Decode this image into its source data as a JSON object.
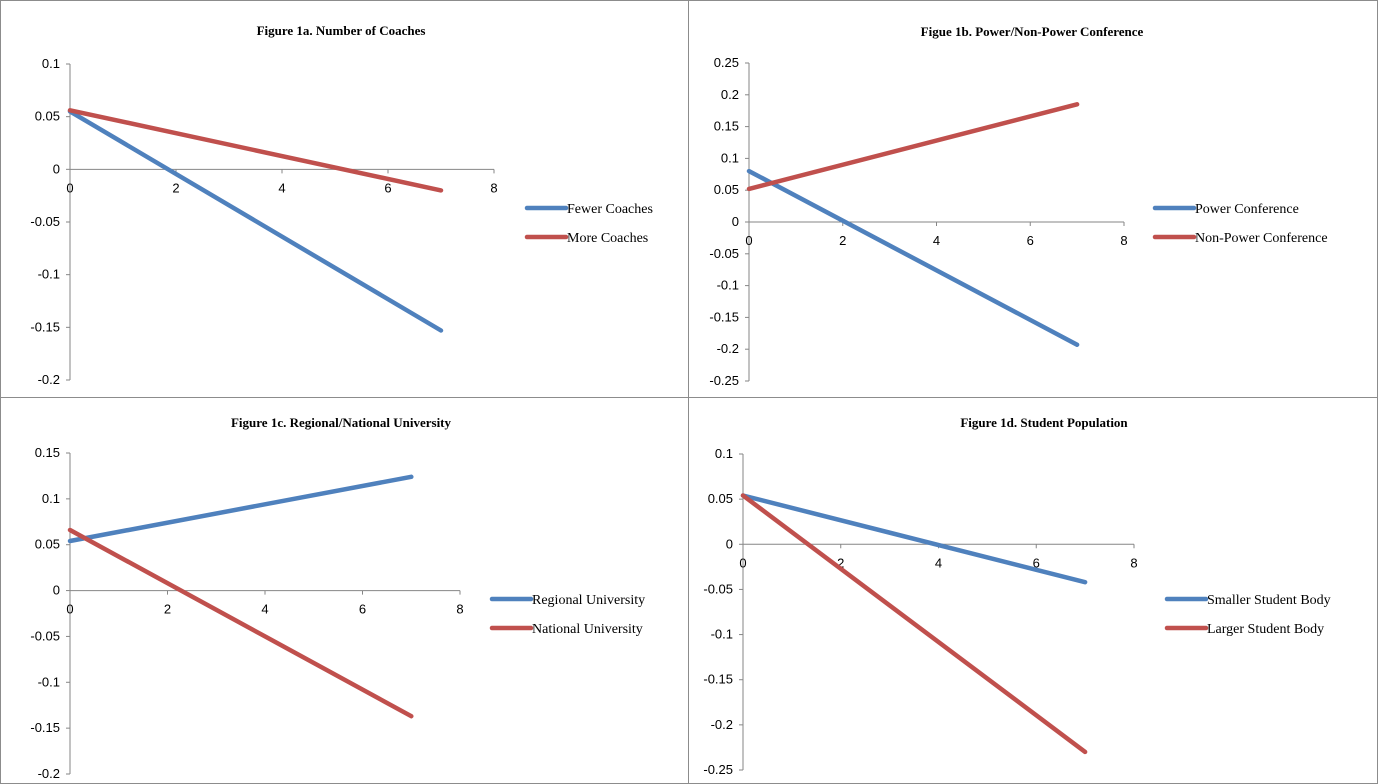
{
  "chart_data": [
    {
      "type": "line",
      "title": "Figure 1a. Number  of Coaches",
      "xlabel": "",
      "ylabel": "",
      "xlim": [
        0,
        8
      ],
      "ylim": [
        -0.2,
        0.1
      ],
      "x_ticks": [
        0,
        2,
        4,
        6,
        8
      ],
      "y_ticks": [
        0.1,
        0.05,
        0,
        -0.05,
        -0.1,
        -0.15,
        -0.2
      ],
      "y_tick_labels": [
        "0.1",
        "0.05",
        "0",
        "-0.05",
        "-0.1",
        "-0.15",
        "-0.2"
      ],
      "legend_position": "right",
      "series": [
        {
          "name": "Fewer Coaches",
          "color": "#4f81bd",
          "x": [
            0,
            7
          ],
          "y": [
            0.055,
            -0.153
          ]
        },
        {
          "name": "More Coaches",
          "color": "#c0504d",
          "x": [
            0,
            7
          ],
          "y": [
            0.056,
            -0.02
          ]
        }
      ]
    },
    {
      "type": "line",
      "title": "Figue 1b. Power/Non-Power Conference",
      "xlabel": "",
      "ylabel": "",
      "xlim": [
        0,
        8
      ],
      "ylim": [
        -0.25,
        0.25
      ],
      "x_ticks": [
        0,
        2,
        4,
        6,
        8
      ],
      "y_ticks": [
        0.25,
        0.2,
        0.15,
        0.1,
        0.05,
        0,
        -0.05,
        -0.1,
        -0.15,
        -0.2,
        -0.25
      ],
      "y_tick_labels": [
        "0.25",
        "0.2",
        "0.15",
        "0.1",
        "0.05",
        "0",
        "-0.05",
        "-0.1",
        "-0.15",
        "-0.2",
        "-0.25"
      ],
      "legend_position": "right",
      "series": [
        {
          "name": "Power Conference",
          "color": "#4f81bd",
          "x": [
            0,
            7
          ],
          "y": [
            0.08,
            -0.193
          ]
        },
        {
          "name": "Non-Power Conference",
          "color": "#c0504d",
          "x": [
            0,
            7
          ],
          "y": [
            0.052,
            0.185
          ]
        }
      ]
    },
    {
      "type": "line",
      "title": "Figure 1c. Regional/National University",
      "xlabel": "",
      "ylabel": "",
      "xlim": [
        0,
        8
      ],
      "ylim": [
        -0.2,
        0.15
      ],
      "x_ticks": [
        0,
        2,
        4,
        6,
        8
      ],
      "y_ticks": [
        0.15,
        0.1,
        0.05,
        0,
        -0.05,
        -0.1,
        -0.15,
        -0.2
      ],
      "y_tick_labels": [
        "0.15",
        "0.1",
        "0.05",
        "0",
        "-0.05",
        "-0.1",
        "-0.15",
        "-0.2"
      ],
      "legend_position": "right",
      "series": [
        {
          "name": "Regional University",
          "color": "#4f81bd",
          "x": [
            0,
            7
          ],
          "y": [
            0.054,
            0.124
          ]
        },
        {
          "name": "National University",
          "color": "#c0504d",
          "x": [
            0,
            7
          ],
          "y": [
            0.066,
            -0.137
          ]
        }
      ]
    },
    {
      "type": "line",
      "title": "Figure 1d. Student Population",
      "xlabel": "",
      "ylabel": "",
      "xlim": [
        0,
        8
      ],
      "ylim": [
        -0.25,
        0.1
      ],
      "x_ticks": [
        0,
        2,
        4,
        6,
        8
      ],
      "y_ticks": [
        0.1,
        0.05,
        0,
        -0.05,
        -0.1,
        -0.15,
        -0.2,
        -0.25
      ],
      "y_tick_labels": [
        "0.1",
        "0.05",
        "0",
        "-0.05",
        "-0.1",
        "-0.15",
        "-0.2",
        "-0.25"
      ],
      "legend_position": "right",
      "series": [
        {
          "name": "Smaller Student Body",
          "color": "#4f81bd",
          "x": [
            0,
            7
          ],
          "y": [
            0.054,
            -0.042
          ]
        },
        {
          "name": "Larger Student Body",
          "color": "#c0504d",
          "x": [
            0,
            7
          ],
          "y": [
            0.054,
            -0.23
          ]
        }
      ]
    }
  ]
}
